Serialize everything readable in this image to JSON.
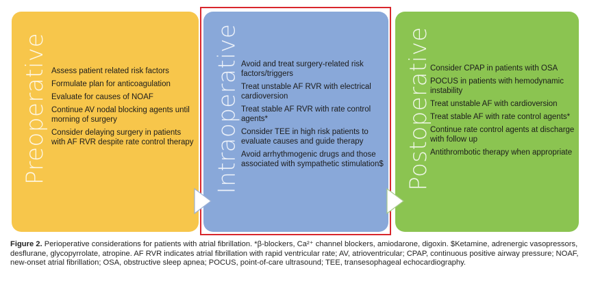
{
  "panels": {
    "preoperative": {
      "title": "Preoperative",
      "items": [
        "Assess patient related risk factors",
        "Formulate plan for anticoagulation",
        "Evaluate for causes of NOAF",
        "Continue AV nodal blocking agents until morning of surgery",
        "Consider delaying surgery in patients with AF RVR despite rate control therapy"
      ]
    },
    "intraoperative": {
      "title": "Intraoperative",
      "items": [
        "Avoid and treat surgery-related risk factors/triggers",
        "Treat unstable AF RVR with electrical cardioversion",
        "Treat stable AF RVR with rate control agents*",
        "Consider TEE in high risk patients to evaluate causes and guide therapy",
        "Avoid arrhythmogenic drugs and those associated with sympathetic stimulation$"
      ]
    },
    "postoperative": {
      "title": "Postoperative",
      "items": [
        "Consider CPAP in patients with OSA",
        "POCUS in patients with hemodynamic instability",
        "Treat unstable AF with cardioversion",
        "Treat stable AF with rate control agents*",
        "Continue rate control agents at discharge with follow up",
        "Antithrombotic therapy when appropriate"
      ]
    }
  },
  "colors": {
    "preoperative": "#f7c64b",
    "intraoperative": "#89a8d9",
    "postoperative": "#8bc451",
    "highlight_frame": "#d8262c"
  },
  "caption": {
    "label": "Figure 2.",
    "text": "Perioperative considerations for patients with atrial fibrillation. *β-blockers, Ca²⁺ channel blockers, amiodarone, digoxin. $Ketamine, adrenergic vasopressors, desflurane, glycopyrrolate, atropine. AF RVR indicates atrial fibrillation with rapid ventricular rate; AV, atrioventricular; CPAP, continuous positive airway pressure; NOAF, new-onset atrial fibrillation; OSA, obstructive sleep apnea; POCUS, point-of-care ultrasound; TEE, transesophageal echocardiography."
  }
}
